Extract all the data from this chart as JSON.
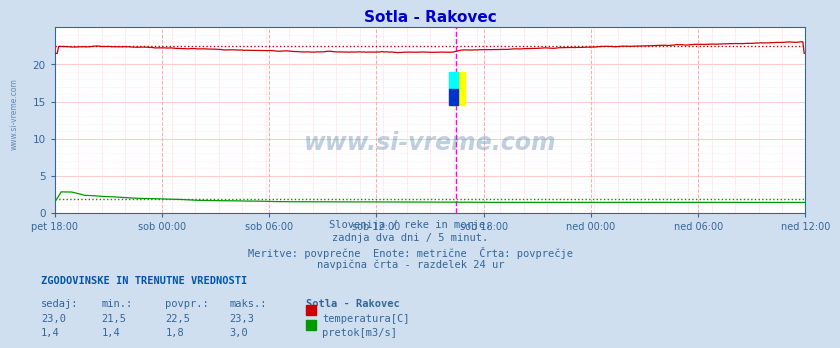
{
  "title": "Sotla - Rakovec",
  "title_color": "#0000cc",
  "bg_color": "#d0dff0",
  "plot_bg_color": "#ffffff",
  "grid_color_h": "#ffcccc",
  "grid_color_v_minor": "#ffdddd",
  "grid_color_v_major": "#ffaaaa",
  "tick_label_color": "#336699",
  "temp_color": "#cc0000",
  "flow_color": "#009900",
  "watermark_color": "#336699",
  "vline_color": "#ff00ff",
  "n_points": 576,
  "temp_min": 21.5,
  "temp_max": 23.3,
  "temp_avg": 22.5,
  "flow_min": 1.4,
  "flow_max": 3.0,
  "flow_avg": 1.8,
  "ylim": [
    0,
    25
  ],
  "yticks": [
    0,
    5,
    10,
    15,
    20
  ],
  "x_tick_labels": [
    "pet 18:00",
    "sob 00:00",
    "sob 06:00",
    "sob 12:00",
    "sob 18:00",
    "ned 00:00",
    "ned 06:00",
    "ned 12:00"
  ],
  "vline_pos": 0.535,
  "subtitle_lines": [
    "Slovenija / reke in morje.",
    "zadnja dva dni / 5 minut.",
    "Meritve: povprečne  Enote: metrične  Črta: povprečje",
    "navpična črta - razdelek 24 ur"
  ],
  "footer_title": "ZGODOVINSKE IN TRENUTNE VREDNOSTI",
  "footer_cols": [
    "sedaj:",
    "min.:",
    "povpr.:",
    "maks.:"
  ],
  "footer_station": "Sotla - Rakovec",
  "footer_temp_vals": [
    "23,0",
    "21,5",
    "22,5",
    "23,3"
  ],
  "footer_flow_vals": [
    "1,4",
    "1,4",
    "1,8",
    "3,0"
  ],
  "footer_temp_label": "temperatura[C]",
  "footer_flow_label": "pretok[m3/s]"
}
